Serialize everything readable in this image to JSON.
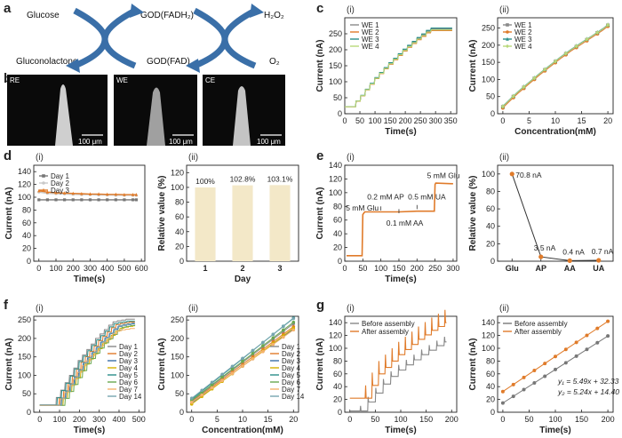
{
  "panel_letters": {
    "a": "a",
    "b": "b",
    "c": "c",
    "d": "d",
    "e": "e",
    "f": "f",
    "g": "g"
  },
  "scheme": {
    "glucose": "Glucose",
    "gluconolactone": "Gluconolactone",
    "god_fadh2": "GOD(FADH₂)",
    "god_fad": "GOD(FAD)",
    "h2o2": "H₂O₂",
    "o2": "O₂",
    "arrow_color": "#3a6fa8"
  },
  "sem": {
    "images": [
      {
        "tag": "RE",
        "scale": "100 μm"
      },
      {
        "tag": "WE",
        "scale": "100 μm"
      },
      {
        "tag": "CE",
        "scale": "100 μm"
      }
    ]
  },
  "chart_data": [
    {
      "id": "c_i",
      "sublabel": "(i)",
      "type": "line",
      "xlabel": "Time(s)",
      "ylabel": "Current (nA)",
      "xlim": [
        0,
        370
      ],
      "ylim": [
        0,
        300
      ],
      "xticks": [
        "0",
        "50",
        "100",
        "150",
        "200",
        "250",
        "300",
        "350"
      ],
      "yticks": [
        "0",
        "50",
        "100",
        "150",
        "200",
        "250"
      ],
      "legend": "top-left",
      "step": {
        "t0": 20,
        "dt": 15.5,
        "levels": [
          22,
          40,
          57,
          76,
          94,
          112,
          128,
          143,
          158,
          172,
          186,
          200,
          212,
          224,
          236,
          247,
          258,
          265
        ]
      },
      "series": [
        {
          "name": "WE 1",
          "color": "#8a8a8a",
          "scale": 1.0
        },
        {
          "name": "WE 2",
          "color": "#e07b2a",
          "scale": 0.98
        },
        {
          "name": "WE 3",
          "color": "#2a8f8a",
          "scale": 1.01
        },
        {
          "name": "WE 4",
          "color": "#b8d87a",
          "scale": 0.99
        }
      ]
    },
    {
      "id": "c_ii",
      "sublabel": "(ii)",
      "type": "scatter",
      "xlabel": "Concentration(mM)",
      "ylabel": "Current (nA)",
      "xlim": [
        -1,
        21
      ],
      "ylim": [
        0,
        280
      ],
      "xticks": [
        "0",
        "5",
        "10",
        "15",
        "20"
      ],
      "yticks": [
        "0",
        "50",
        "100",
        "150",
        "200",
        "250"
      ],
      "legend": "top-left",
      "x": [
        0,
        1,
        2,
        3,
        4,
        5,
        6,
        7,
        8,
        9,
        10,
        11,
        12,
        13,
        14,
        15,
        16,
        17,
        18,
        19,
        20
      ],
      "base": [
        20,
        35,
        50,
        64,
        77,
        90,
        103,
        116,
        128,
        140,
        152,
        164,
        175,
        186,
        196,
        206,
        216,
        226,
        236,
        246,
        258
      ],
      "series": [
        {
          "name": "WE 1",
          "color": "#8a8a8a",
          "marker": "square",
          "offset": 0
        },
        {
          "name": "WE 2",
          "color": "#e07b2a",
          "marker": "circle",
          "offset": -3
        },
        {
          "name": "WE 3",
          "color": "#2a8f8a",
          "marker": "triangle",
          "offset": 2
        },
        {
          "name": "WE 4",
          "color": "#b8d87a",
          "marker": "diamond",
          "offset": 1
        }
      ]
    },
    {
      "id": "d_i",
      "sublabel": "(i)",
      "type": "line",
      "xlabel": "Time(s)",
      "ylabel": "Current (nA)",
      "xlim": [
        -30,
        620
      ],
      "ylim": [
        0,
        150
      ],
      "xticks": [
        "0",
        "100",
        "200",
        "300",
        "400",
        "500",
        "600"
      ],
      "yticks": [
        "0",
        "20",
        "40",
        "60",
        "80",
        "100",
        "120",
        "140"
      ],
      "legend": "top-left",
      "x": [
        0,
        50,
        100,
        150,
        200,
        250,
        300,
        350,
        400,
        450,
        500,
        550,
        570
      ],
      "series": [
        {
          "name": "Day 1",
          "color": "#777777",
          "marker": "square",
          "values": [
            96,
            96,
            96,
            96,
            96,
            96,
            96,
            96,
            96,
            96,
            96,
            96,
            96
          ]
        },
        {
          "name": "Day 2",
          "color": "#c9c9c9",
          "marker": "circle",
          "values": [
            108,
            106,
            105.5,
            105,
            104.5,
            104,
            104,
            103.5,
            103.5,
            103,
            103,
            103,
            103
          ]
        },
        {
          "name": "Day 3",
          "color": "#e07b2a",
          "marker": "triangle",
          "values": [
            110,
            108,
            107,
            106.5,
            106,
            105.5,
            105,
            105,
            104.5,
            104.5,
            104,
            104,
            104
          ]
        }
      ]
    },
    {
      "id": "d_ii",
      "sublabel": "(ii)",
      "type": "bar",
      "xlabel": "Day",
      "ylabel": "Relative value (%)",
      "ylim": [
        0,
        130
      ],
      "yticks": [
        "0",
        "20",
        "40",
        "60",
        "80",
        "100",
        "120"
      ],
      "categories": [
        "1",
        "2",
        "3"
      ],
      "values": [
        100,
        102.8,
        103.1
      ],
      "data_labels": [
        "100%",
        "102.8%",
        "103.1%"
      ],
      "bar_color": "#f3e8c8"
    },
    {
      "id": "e_i",
      "sublabel": "(i)",
      "type": "line",
      "xlabel": "Time(s)",
      "ylabel": "Current (nA)",
      "xlim": [
        0,
        310
      ],
      "ylim": [
        0,
        140
      ],
      "xticks": [
        "0",
        "50",
        "100",
        "150",
        "200",
        "250",
        "300"
      ],
      "yticks": [
        "0",
        "20",
        "40",
        "60",
        "80",
        "100",
        "120",
        "140"
      ],
      "x": [
        5,
        48,
        50,
        55,
        100,
        148,
        150,
        200,
        248,
        250,
        252,
        300
      ],
      "values": [
        8,
        8,
        68,
        72,
        72,
        72,
        72,
        73,
        73,
        112,
        114,
        113
      ],
      "line_color": "#e07b2a",
      "annotations": [
        "5 mM Glu",
        "0.2 mM AP",
        "0.1 mM AA",
        "0.5 mM UA",
        "5 mM Glu"
      ]
    },
    {
      "id": "e_ii",
      "sublabel": "(ii)",
      "type": "line",
      "xlabel": "",
      "ylabel": "Relative value (%)",
      "ylim": [
        0,
        110
      ],
      "yticks": [
        "0",
        "20",
        "40",
        "60",
        "80",
        "100"
      ],
      "categories": [
        "Glu",
        "AP",
        "AA",
        "UA"
      ],
      "values": [
        100,
        5,
        0.6,
        1
      ],
      "data_labels": [
        "70.8 nA",
        "3.5 nA",
        "0.4 nA",
        "0.7 nA"
      ],
      "line_color": "#333333",
      "marker_color": "#e07b2a"
    },
    {
      "id": "f_i",
      "sublabel": "(i)",
      "type": "line",
      "xlabel": "Time(s)",
      "ylabel": "Current (nA)",
      "xlim": [
        -30,
        530
      ],
      "ylim": [
        0,
        260
      ],
      "xticks": [
        "0",
        "100",
        "200",
        "300",
        "400",
        "500"
      ],
      "yticks": [
        "0",
        "50",
        "100",
        "150",
        "200",
        "250"
      ],
      "legend": "right",
      "step": {
        "t0": 60,
        "dt": 22,
        "levels": [
          20,
          40,
          60,
          80,
          100,
          120,
          140,
          155,
          170,
          185,
          200,
          212,
          224,
          236,
          245,
          248,
          250,
          252
        ]
      },
      "series": [
        {
          "name": "Day 1",
          "color": "#888888",
          "shift": 0,
          "scale": 1.0
        },
        {
          "name": "Day 2",
          "color": "#e07b2a",
          "shift": 15,
          "scale": 0.97
        },
        {
          "name": "Day 3",
          "color": "#3a6fa8",
          "shift": 25,
          "scale": 0.95
        },
        {
          "name": "Day 4",
          "color": "#d4b100",
          "shift": 35,
          "scale": 0.93
        },
        {
          "name": "Day 5",
          "color": "#2a8f8a",
          "shift": 5,
          "scale": 0.98
        },
        {
          "name": "Day 6",
          "color": "#6aa84f",
          "shift": 45,
          "scale": 0.94
        },
        {
          "name": "Day 7",
          "color": "#f6b26b",
          "shift": 20,
          "scale": 0.9
        },
        {
          "name": "Day 14",
          "color": "#76a5af",
          "shift": 30,
          "scale": 0.96
        }
      ]
    },
    {
      "id": "f_ii",
      "sublabel": "(ii)",
      "type": "scatter",
      "xlabel": "Concentration(mM)",
      "ylabel": "Current (nA)",
      "xlim": [
        -1,
        21
      ],
      "ylim": [
        0,
        260
      ],
      "xticks": [
        "0",
        "5",
        "10",
        "15",
        "20"
      ],
      "yticks": [
        "0",
        "50",
        "100",
        "150",
        "200",
        "250"
      ],
      "legend": "right",
      "x": [
        0,
        2,
        4,
        6,
        8,
        10,
        12,
        14,
        16,
        18,
        20
      ],
      "series": [
        {
          "name": "Day 1",
          "color": "#888888",
          "intercept": 30,
          "slope": 10.5
        },
        {
          "name": "Day 2",
          "color": "#e07b2a",
          "intercept": 28,
          "slope": 10.2
        },
        {
          "name": "Day 3",
          "color": "#3a6fa8",
          "intercept": 25,
          "slope": 10.0
        },
        {
          "name": "Day 4",
          "color": "#d4b100",
          "intercept": 22,
          "slope": 10.3
        },
        {
          "name": "Day 5",
          "color": "#2a8f8a",
          "intercept": 35,
          "slope": 11.0
        },
        {
          "name": "Day 6",
          "color": "#6aa84f",
          "intercept": 32,
          "slope": 10.6
        },
        {
          "name": "Day 7",
          "color": "#f6b26b",
          "intercept": 27,
          "slope": 9.8
        },
        {
          "name": "Day 14",
          "color": "#76a5af",
          "intercept": 38,
          "slope": 10.8
        }
      ]
    },
    {
      "id": "g_i",
      "sublabel": "(i)",
      "type": "line",
      "xlabel": "Time(s)",
      "ylabel": "Current (nA)",
      "xlim": [
        -10,
        210
      ],
      "ylim": [
        0,
        150
      ],
      "xticks": [
        "0",
        "50",
        "100",
        "150",
        "200"
      ],
      "yticks": [
        "0",
        "20",
        "40",
        "60",
        "80",
        "100",
        "120",
        "140"
      ],
      "legend": "top-left",
      "series": [
        {
          "name": "Before assembly",
          "color": "#888888",
          "t0": 20,
          "dt": 15,
          "levels": [
            2,
            16,
            30,
            44,
            56,
            66,
            74,
            82,
            90,
            97,
            104,
            110
          ],
          "spike": 8
        },
        {
          "name": "After assembly",
          "color": "#e07b2a",
          "t0": 30,
          "dt": 13,
          "levels": [
            22,
            42,
            60,
            70,
            80,
            90,
            98,
            106,
            114,
            121,
            128,
            134,
            140
          ],
          "spike": 20
        }
      ]
    },
    {
      "id": "g_ii",
      "sublabel": "(ii)",
      "type": "scatter",
      "xlabel": "Time(s)",
      "ylabel": "Current (nA)",
      "xlim": [
        -10,
        210
      ],
      "ylim": [
        0,
        150
      ],
      "xticks": [
        "0",
        "50",
        "100",
        "150",
        "200"
      ],
      "yticks": [
        "0",
        "20",
        "40",
        "60",
        "80",
        "100",
        "120",
        "140"
      ],
      "legend": "top-left",
      "x": [
        0,
        20,
        40,
        60,
        80,
        100,
        120,
        140,
        160,
        180,
        200
      ],
      "series": [
        {
          "name": "Before assembly",
          "color": "#777777",
          "slope": 0.524,
          "intercept": 14.4,
          "equation": "y₂ = 5.24x + 14.40"
        },
        {
          "name": "After assembly",
          "color": "#e07b2a",
          "slope": 0.549,
          "intercept": 32.33,
          "equation": "y₁ = 5.49x + 32.33"
        }
      ]
    }
  ]
}
